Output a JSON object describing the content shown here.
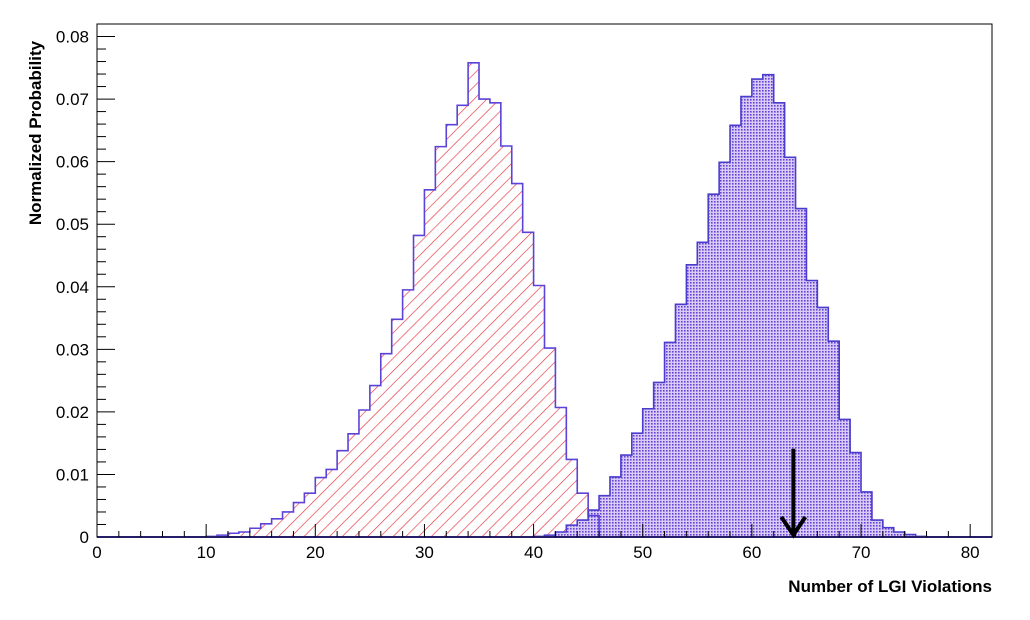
{
  "chart_data": {
    "type": "bar",
    "title": "",
    "xlabel": "Number of LGI Violations",
    "ylabel": "Normalized Probability",
    "xlim": [
      0,
      82
    ],
    "ylim": [
      0,
      0.082
    ],
    "x_ticks": [
      0,
      10,
      20,
      30,
      40,
      50,
      60,
      70,
      80
    ],
    "x_tick_labels": [
      "0",
      "10",
      "20",
      "30",
      "40",
      "50",
      "60",
      "70",
      "80"
    ],
    "y_ticks": [
      0,
      0.01,
      0.02,
      0.03,
      0.04,
      0.05,
      0.06,
      0.07,
      0.08
    ],
    "y_tick_labels": [
      "0",
      "0.01",
      "0.02",
      "0.03",
      "0.04",
      "0.05",
      "0.06",
      "0.07",
      "0.08"
    ],
    "grid": false,
    "legend": "none",
    "histogram_bin_width": 1,
    "series": [
      {
        "fill_pattern": "diagonal-hatch",
        "fill_color": "#e8323c",
        "line_color": "#5b42d9",
        "x_start": [
          10,
          11,
          12,
          13,
          14,
          15,
          16,
          17,
          18,
          19,
          20,
          21,
          22,
          23,
          24,
          25,
          26,
          27,
          28,
          29,
          30,
          31,
          32,
          33,
          34,
          35,
          36,
          37,
          38,
          39,
          40,
          41,
          42,
          43,
          44,
          45
        ],
        "values": [
          0.0001,
          0.0003,
          0.0006,
          0.0008,
          0.0014,
          0.0021,
          0.0029,
          0.004,
          0.0055,
          0.007,
          0.0095,
          0.0108,
          0.0138,
          0.0165,
          0.0203,
          0.0242,
          0.0293,
          0.0348,
          0.0395,
          0.0482,
          0.0555,
          0.0624,
          0.0659,
          0.069,
          0.0758,
          0.07,
          0.0694,
          0.0625,
          0.0565,
          0.0487,
          0.0402,
          0.0302,
          0.0207,
          0.0124,
          0.007,
          0.0034
        ]
      },
      {
        "fill_pattern": "dotted",
        "fill_color": "#6a3fd8",
        "line_color": "#4a3ccc",
        "x_start": [
          40,
          41,
          42,
          43,
          44,
          45,
          46,
          47,
          48,
          49,
          50,
          51,
          52,
          53,
          54,
          55,
          56,
          57,
          58,
          59,
          60,
          61,
          62,
          63,
          64,
          65,
          66,
          67,
          68,
          69,
          70,
          71,
          72,
          73,
          74,
          75
        ],
        "values": [
          0.0001,
          0.0003,
          0.0008,
          0.0019,
          0.0027,
          0.0043,
          0.0066,
          0.0096,
          0.0131,
          0.0166,
          0.0205,
          0.0247,
          0.0311,
          0.0372,
          0.0435,
          0.0471,
          0.0548,
          0.0599,
          0.0658,
          0.0704,
          0.0732,
          0.0739,
          0.0694,
          0.0607,
          0.0525,
          0.041,
          0.0367,
          0.0313,
          0.0188,
          0.0135,
          0.0072,
          0.0027,
          0.0015,
          0.0008,
          0.0004,
          0.0001
        ]
      }
    ],
    "annotations": [
      {
        "type": "arrow",
        "direction": "down",
        "x": 63.8,
        "y_from": 0.0141,
        "y_to": 0.0,
        "color": "#000000"
      }
    ]
  }
}
